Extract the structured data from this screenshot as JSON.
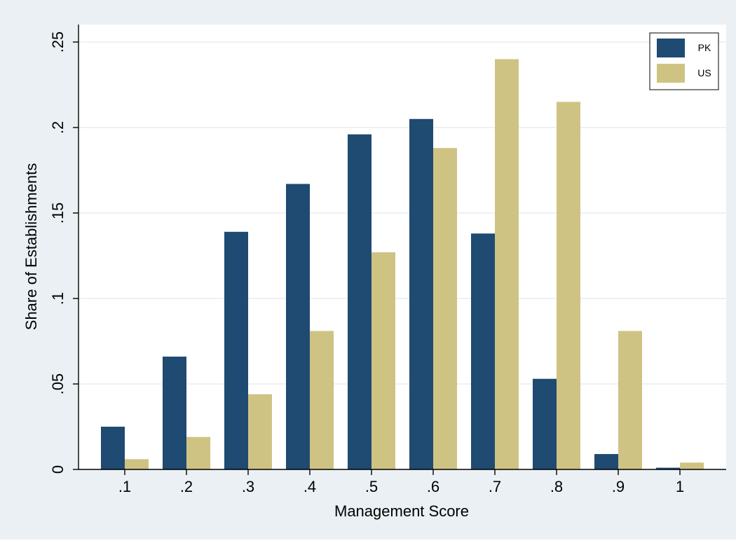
{
  "chart_data": {
    "type": "bar",
    "xlabel": "Management Score",
    "ylabel": "Share of Establishments",
    "categories": [
      ".1",
      ".2",
      ".3",
      ".4",
      ".5",
      ".6",
      ".7",
      ".8",
      ".9",
      "1"
    ],
    "series": [
      {
        "name": "PK",
        "color": "#1f4a72",
        "values": [
          0.025,
          0.066,
          0.139,
          0.167,
          0.196,
          0.205,
          0.138,
          0.053,
          0.009,
          0.001
        ]
      },
      {
        "name": "US",
        "color": "#cfc383",
        "values": [
          0.006,
          0.019,
          0.044,
          0.081,
          0.127,
          0.188,
          0.24,
          0.215,
          0.081,
          0.004
        ]
      }
    ],
    "yticks": [
      0,
      0.05,
      0.1,
      0.15,
      0.2,
      0.25
    ],
    "ytick_labels": [
      "0",
      ".05",
      ".1",
      ".15",
      ".2",
      ".25"
    ],
    "ylim": [
      0,
      0.25
    ],
    "grid": true,
    "legend_position": "top-right",
    "colors": {
      "outer_background": "#eaf0f3",
      "plot_background": "#ffffff",
      "grid": "#e6edf1",
      "axis": "#000000"
    }
  }
}
